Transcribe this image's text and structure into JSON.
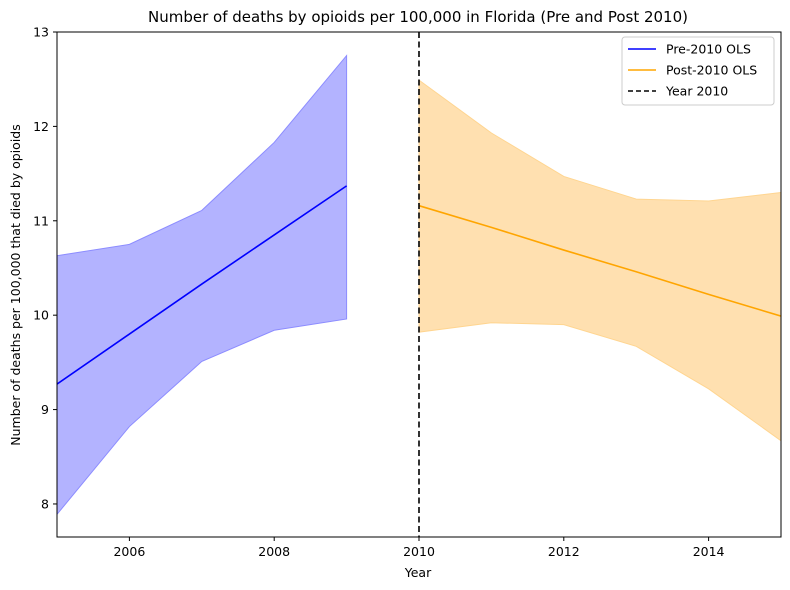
{
  "chart_data": {
    "type": "line",
    "title": "Number of deaths by opioids per 100,000 in Florida (Pre and Post 2010)",
    "xlabel": "Year",
    "ylabel": "Number of deaths per 100,000 that died by opioids",
    "xlim": [
      2005,
      2015
    ],
    "ylim": [
      7.65,
      13
    ],
    "x_ticks": [
      2006,
      2008,
      2010,
      2012,
      2014
    ],
    "y_ticks": [
      8,
      9,
      10,
      11,
      12,
      13
    ],
    "grid": false,
    "legend_position": "top-right",
    "series": [
      {
        "name": "Pre-2010 OLS",
        "color": "#0000ff",
        "band_color": "#b3b3ff",
        "x": [
          2005,
          2006,
          2007,
          2008,
          2009
        ],
        "y": [
          9.27,
          9.8,
          10.33,
          10.85,
          11.37
        ],
        "lower": [
          7.89,
          8.82,
          9.51,
          9.84,
          9.96
        ],
        "upper": [
          10.63,
          10.75,
          11.11,
          11.83,
          12.75
        ]
      },
      {
        "name": "Post-2010 OLS",
        "color": "#ffa500",
        "band_color": "#ffe0b0",
        "x": [
          2010,
          2011,
          2012,
          2013,
          2014,
          2015
        ],
        "y": [
          11.16,
          10.93,
          10.69,
          10.46,
          10.22,
          9.99
        ],
        "lower": [
          9.82,
          9.92,
          9.9,
          9.67,
          9.22,
          8.67
        ],
        "upper": [
          12.49,
          11.93,
          11.47,
          11.23,
          11.21,
          11.3
        ]
      }
    ],
    "vline": {
      "name": "Year 2010",
      "x": 2010,
      "color": "#000000",
      "style": "dashed"
    }
  }
}
